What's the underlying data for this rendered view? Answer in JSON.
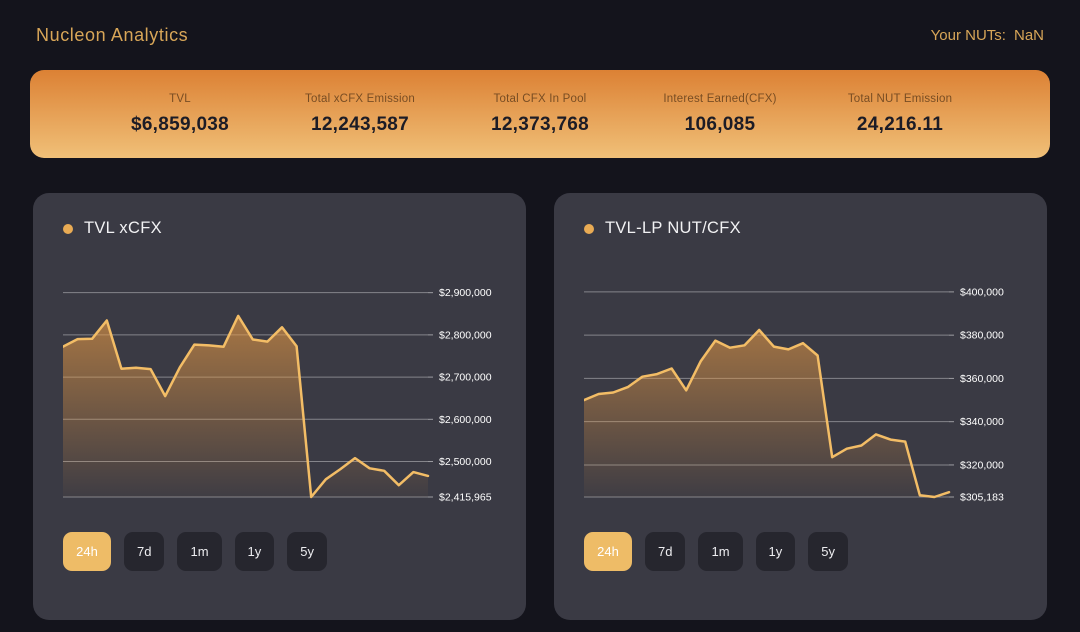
{
  "header": {
    "title": "Nucleon Analytics",
    "nuts_label": "Your NUTs:",
    "nuts_value": "NaN"
  },
  "stats": [
    {
      "label": "TVL",
      "value": "$6,859,038"
    },
    {
      "label": "Total xCFX Emission",
      "value": "12,243,587"
    },
    {
      "label": "Total CFX In Pool",
      "value": "12,373,768"
    },
    {
      "label": "Interest Earned(CFX)",
      "value": "106,085"
    },
    {
      "label": "Total NUT Emission",
      "value": "24,216.11"
    }
  ],
  "time_ranges": [
    "24h",
    "7d",
    "1m",
    "1y",
    "5y"
  ],
  "active_range": "24h",
  "colors": {
    "page_bg": "#14141c",
    "card_bg": "#3a3a44",
    "brand_gold": "#d8a658",
    "stats_gradient_top": "#dc8134",
    "stats_gradient_bottom": "#f0c078",
    "chart_line": "#f3bd66",
    "area_fill": "#e89a44",
    "legend_dot": "#e9ab54",
    "active_button_bg": "#eebc67",
    "gridline": "rgba(255,255,255,0.38)",
    "tick_label": "#ffffff"
  },
  "chart_data": [
    {
      "type": "area",
      "title": "TVL xCFX",
      "xlabel": "",
      "ylabel": "USD",
      "grid": "horizontal",
      "ylim": [
        2415965,
        2930000
      ],
      "yticks": [
        {
          "v": 2900000,
          "label": "$2,900,000"
        },
        {
          "v": 2800000,
          "label": "$2,800,000"
        },
        {
          "v": 2700000,
          "label": "$2,700,000"
        },
        {
          "v": 2600000,
          "label": "$2,600,000"
        },
        {
          "v": 2500000,
          "label": "$2,500,000"
        },
        {
          "v": 2415965,
          "label": "$2,415,965"
        }
      ],
      "values": [
        2772000,
        2790000,
        2791000,
        2834000,
        2720000,
        2722000,
        2719000,
        2655000,
        2723000,
        2777000,
        2775000,
        2772000,
        2845000,
        2789000,
        2784000,
        2818000,
        2773000,
        2416000,
        2458000,
        2482000,
        2508000,
        2484000,
        2478000,
        2444000,
        2475000,
        2466000
      ]
    },
    {
      "type": "area",
      "title": "TVL-LP NUT/CFX",
      "xlabel": "",
      "ylabel": "USD",
      "grid": "horizontal",
      "ylim": [
        305183,
        405500
      ],
      "yticks": [
        {
          "v": 400000,
          "label": "$400,000"
        },
        {
          "v": 380000,
          "label": "$380,000"
        },
        {
          "v": 360000,
          "label": "$360,000"
        },
        {
          "v": 340000,
          "label": "$340,000"
        },
        {
          "v": 320000,
          "label": "$320,000"
        },
        {
          "v": 305183,
          "label": "$305,183"
        }
      ],
      "values": [
        350000,
        352800,
        353500,
        356000,
        360800,
        362000,
        364600,
        354500,
        368000,
        377500,
        374200,
        375300,
        382400,
        374700,
        373400,
        376300,
        370600,
        323600,
        327500,
        329000,
        334100,
        331700,
        330800,
        306000,
        305183,
        307400
      ]
    }
  ]
}
